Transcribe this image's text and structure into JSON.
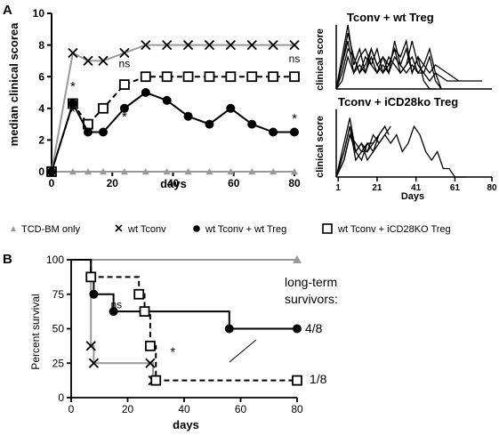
{
  "panel_labels": {
    "a": "A",
    "b": "B"
  },
  "legend": [
    {
      "label": "TCD-BM only",
      "marker": "triangle",
      "color": "#999999"
    },
    {
      "label": "wt Tconv",
      "marker": "x",
      "color": "#000000"
    },
    {
      "label": "wt Tconv + wt Treg",
      "marker": "filled-circle",
      "color": "#000000"
    },
    {
      "label": "wt Tconv + iCD28KO Treg",
      "marker": "open-square",
      "color": "#000000"
    }
  ],
  "long_term": {
    "title_line1": "long-term",
    "title_line2": "survivors:",
    "wt_treg": "4/8",
    "icd28ko": "1/8"
  },
  "chart_data": [
    {
      "id": "A-main",
      "type": "line",
      "title": "",
      "xlabel": "days",
      "ylabel": "median clinical scorea",
      "xlim": [
        0,
        80
      ],
      "ylim": [
        0,
        10
      ],
      "xticks": [
        0,
        20,
        40,
        60,
        80
      ],
      "yticks": [
        0,
        2,
        4,
        6,
        8,
        10
      ],
      "series": [
        {
          "name": "TCD-BM only",
          "color": "#999999",
          "marker": "triangle",
          "x": [
            0,
            7,
            12,
            17,
            24,
            31,
            38,
            45,
            52,
            59,
            66,
            73,
            80
          ],
          "y": [
            0,
            0,
            0,
            0,
            0,
            0,
            0,
            0,
            0,
            0,
            0,
            0,
            0
          ]
        },
        {
          "name": "wt Tconv",
          "color": "#999999",
          "marker": "x",
          "x": [
            0,
            7,
            12,
            17,
            24,
            31,
            38,
            45,
            52,
            59,
            66,
            73,
            80
          ],
          "y": [
            0,
            7.5,
            7,
            7,
            7.5,
            8,
            8,
            8,
            8,
            8,
            8,
            8,
            8
          ]
        },
        {
          "name": "wt Tconv + iCD28KO Treg",
          "color": "#000000",
          "marker": "open-square",
          "dash": true,
          "x": [
            0,
            7,
            12,
            17,
            24,
            31,
            38,
            45,
            52,
            59,
            66,
            73,
            80
          ],
          "y": [
            0,
            4.3,
            3,
            4,
            5.5,
            6,
            6,
            6,
            6,
            6,
            6,
            6,
            6
          ]
        },
        {
          "name": "wt Tconv + wt Treg",
          "color": "#000000",
          "marker": "filled-circle",
          "x": [
            0,
            7,
            12,
            17,
            24,
            31,
            38,
            45,
            52,
            59,
            66,
            73,
            80
          ],
          "y": [
            0,
            4.3,
            2.5,
            2.5,
            4,
            5,
            4.5,
            3.5,
            3,
            4,
            3,
            2.5,
            2.5
          ]
        }
      ],
      "annotations": [
        {
          "text": "*",
          "x": 7,
          "y": 5.1
        },
        {
          "text": "*",
          "x": 7,
          "y": 3.5
        },
        {
          "text": "*",
          "x": 24,
          "y": 3.2
        },
        {
          "text": "ns",
          "x": 24,
          "y": 6.6
        },
        {
          "text": "ns",
          "x": 80,
          "y": 6.9
        },
        {
          "text": "*",
          "x": 80,
          "y": 3.1
        }
      ]
    },
    {
      "id": "A-top-right",
      "type": "line",
      "title": "Tconv + wt Treg",
      "ylabel": "clinical score",
      "xlabel": "",
      "xlim": [
        0,
        80
      ],
      "ylim": [
        0,
        8
      ],
      "series": [
        {
          "x": [
            0,
            3,
            6,
            9,
            12,
            15,
            18,
            21,
            24,
            27,
            30,
            33,
            36,
            39,
            42,
            45,
            48,
            51
          ],
          "y": [
            0,
            4,
            8,
            3,
            5,
            2,
            5,
            3,
            4,
            2,
            6,
            3,
            5,
            2,
            4,
            1,
            0,
            0
          ]
        },
        {
          "x": [
            0,
            3,
            6,
            9,
            12,
            15,
            18,
            21,
            24,
            27,
            30,
            33,
            36,
            39,
            42,
            45,
            48,
            51,
            54
          ],
          "y": [
            0,
            3,
            6,
            2,
            4,
            5,
            3,
            2,
            4,
            3,
            5,
            2,
            3,
            6,
            3,
            2,
            4,
            1,
            0
          ]
        },
        {
          "x": [
            0,
            3,
            6,
            9,
            12,
            15,
            18,
            21,
            24,
            27,
            30,
            33,
            36,
            39,
            42,
            45,
            48,
            51,
            57,
            63
          ],
          "y": [
            0,
            2,
            5,
            4,
            2,
            3,
            5,
            3,
            2,
            4,
            3,
            2,
            3,
            4,
            2,
            3,
            2,
            3,
            2,
            1
          ]
        },
        {
          "x": [
            0,
            3,
            6,
            9,
            12,
            15,
            18,
            21,
            24,
            27,
            30,
            33,
            36,
            39,
            42,
            45,
            48,
            51,
            57,
            63,
            69,
            75
          ],
          "y": [
            0,
            1,
            4,
            2,
            3,
            2,
            4,
            2,
            3,
            2,
            4,
            3,
            2,
            3,
            2,
            2,
            1,
            2,
            1,
            1,
            1,
            1
          ]
        },
        {
          "x": [
            0,
            3,
            6,
            9,
            12,
            15,
            18,
            21,
            24,
            27,
            30,
            33,
            36,
            39,
            42,
            45,
            48,
            51,
            54
          ],
          "y": [
            0,
            3,
            7,
            4,
            2,
            4,
            3,
            5,
            2,
            3,
            5,
            4,
            6,
            2,
            4,
            3,
            5,
            2,
            0
          ]
        }
      ]
    },
    {
      "id": "A-bottom-right",
      "type": "line",
      "title": "Tconv + iCD28ko Treg",
      "ylabel": "clinical score",
      "xlabel": "Days",
      "xlim": [
        0,
        80
      ],
      "ylim": [
        0,
        8
      ],
      "xticks": [
        1,
        21,
        41,
        61,
        80
      ],
      "series": [
        {
          "x": [
            0,
            4,
            7,
            10,
            13,
            16,
            19,
            22,
            25,
            28
          ],
          "y": [
            0,
            4,
            7,
            3,
            4,
            3,
            5,
            4,
            5,
            6
          ]
        },
        {
          "x": [
            0,
            4,
            7,
            10,
            13,
            16,
            19,
            22,
            25,
            27
          ],
          "y": [
            0,
            3,
            6,
            3,
            2,
            4,
            3,
            5,
            6,
            5
          ]
        },
        {
          "x": [
            0,
            4,
            7,
            10,
            13,
            16,
            19,
            22,
            25
          ],
          "y": [
            0,
            2,
            5,
            4,
            3,
            4,
            4,
            5,
            6
          ]
        },
        {
          "x": [
            0,
            4,
            7,
            10,
            13,
            16,
            19,
            22
          ],
          "y": [
            0,
            3,
            6,
            2,
            3,
            3,
            4,
            5
          ]
        },
        {
          "x": [
            0,
            4,
            7,
            10,
            13,
            16,
            19,
            22,
            25,
            28,
            31,
            34,
            37,
            40,
            43,
            46,
            49,
            52,
            55,
            58,
            61,
            64,
            67
          ],
          "y": [
            0,
            2,
            5,
            3,
            4,
            2,
            3,
            4,
            5,
            4,
            5,
            3,
            4,
            6,
            5,
            3,
            2,
            3,
            1,
            1,
            0,
            0,
            0
          ]
        }
      ]
    },
    {
      "id": "B-survival",
      "type": "line",
      "title": "",
      "xlabel": "days",
      "ylabel": "Percent survival",
      "xlim": [
        0,
        80
      ],
      "ylim": [
        0,
        100
      ],
      "xticks": [
        0,
        20,
        40,
        60,
        80
      ],
      "yticks": [
        0,
        25,
        50,
        75,
        100
      ],
      "series": [
        {
          "name": "TCD-BM only",
          "color": "#999999",
          "marker": "triangle",
          "step": true,
          "x": [
            0,
            80
          ],
          "y": [
            100,
            100
          ]
        },
        {
          "name": "wt Tconv",
          "color": "#999999",
          "marker": "x",
          "step": true,
          "x": [
            0,
            7,
            8,
            28,
            29
          ],
          "y": [
            100,
            37.5,
            25,
            25,
            12.5
          ]
        },
        {
          "name": "wt Tconv + wt Treg",
          "color": "#000000",
          "marker": "filled-circle",
          "step": true,
          "x": [
            0,
            7,
            8,
            15,
            56,
            80
          ],
          "y": [
            100,
            87.5,
            75,
            62.5,
            50,
            50
          ]
        },
        {
          "name": "wt Tconv + iCD28KO Treg",
          "color": "#000000",
          "marker": "open-square",
          "step": true,
          "dash": true,
          "x": [
            0,
            7,
            24,
            26,
            28,
            30,
            80
          ],
          "y": [
            100,
            87.5,
            75,
            62.5,
            37.5,
            12.5,
            12.5
          ]
        }
      ],
      "annotations": [
        {
          "text": "ns",
          "x": 16,
          "y": 65
        },
        {
          "text": "*",
          "x": 36,
          "y": 30
        }
      ]
    }
  ]
}
